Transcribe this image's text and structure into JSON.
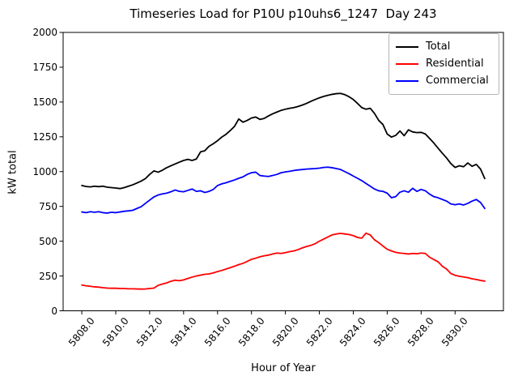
{
  "title": "Timeseries Load for P10U p10uhs6_1247  Day 243",
  "axes": {
    "xlabel": "Hour of Year",
    "ylabel": "kW total",
    "x_tick_labels": [
      "5808.0",
      "5810.0",
      "5812.0",
      "5814.0",
      "5816.0",
      "5818.0",
      "5820.0",
      "5822.0",
      "5824.0",
      "5826.0",
      "5828.0",
      "5830.0"
    ],
    "x_ticks": [
      5808.0,
      5810.0,
      5812.0,
      5814.0,
      5816.0,
      5818.0,
      5820.0,
      5822.0,
      5824.0,
      5826.0,
      5828.0,
      5830.0
    ],
    "y_tick_labels": [
      "0",
      "250",
      "500",
      "750",
      "1000",
      "1250",
      "1500",
      "1750",
      "2000"
    ],
    "y_ticks": [
      0,
      250,
      500,
      750,
      1000,
      1250,
      1500,
      1750,
      2000
    ]
  },
  "legend": {
    "position": "upper right",
    "entries": [
      "Total",
      "Residential",
      "Commercial"
    ]
  },
  "chart_data": {
    "type": "line",
    "title": "Timeseries Load for P10U p10uhs6_1247  Day 243",
    "xlabel": "Hour of Year",
    "ylabel": "kW total",
    "xlim": [
      5806.9,
      5832.85
    ],
    "ylim": [
      0,
      2000
    ],
    "grid": false,
    "legend_position": "upper right",
    "x": [
      5808.0,
      5808.25,
      5808.5,
      5808.75,
      5809.0,
      5809.25,
      5809.5,
      5809.75,
      5810.0,
      5810.25,
      5810.5,
      5810.75,
      5811.0,
      5811.25,
      5811.5,
      5811.75,
      5812.0,
      5812.25,
      5812.5,
      5812.75,
      5813.0,
      5813.25,
      5813.5,
      5813.75,
      5814.0,
      5814.25,
      5814.5,
      5814.75,
      5815.0,
      5815.25,
      5815.5,
      5815.75,
      5816.0,
      5816.25,
      5816.5,
      5816.75,
      5817.0,
      5817.25,
      5817.5,
      5817.75,
      5818.0,
      5818.25,
      5818.5,
      5818.75,
      5819.0,
      5819.25,
      5819.5,
      5819.75,
      5820.0,
      5820.25,
      5820.5,
      5820.75,
      5821.0,
      5821.25,
      5821.5,
      5821.75,
      5822.0,
      5822.25,
      5822.5,
      5822.75,
      5823.0,
      5823.25,
      5823.5,
      5823.75,
      5824.0,
      5824.25,
      5824.5,
      5824.75,
      5825.0,
      5825.25,
      5825.5,
      5825.75,
      5826.0,
      5826.25,
      5826.5,
      5826.75,
      5827.0,
      5827.25,
      5827.5,
      5827.75,
      5828.0,
      5828.25,
      5828.5,
      5828.75,
      5829.0,
      5829.25,
      5829.5,
      5829.75,
      5830.0,
      5830.25,
      5830.5,
      5830.75,
      5831.0,
      5831.25,
      5831.5,
      5831.75
    ],
    "series": [
      {
        "name": "Total",
        "color": "#000000",
        "values": [
          900,
          893,
          890,
          895,
          892,
          895,
          888,
          885,
          882,
          878,
          885,
          895,
          905,
          918,
          932,
          950,
          980,
          1005,
          996,
          1010,
          1028,
          1042,
          1055,
          1068,
          1080,
          1088,
          1080,
          1090,
          1142,
          1150,
          1182,
          1200,
          1222,
          1248,
          1268,
          1295,
          1325,
          1378,
          1355,
          1368,
          1385,
          1392,
          1375,
          1382,
          1400,
          1415,
          1428,
          1440,
          1448,
          1455,
          1460,
          1468,
          1478,
          1490,
          1505,
          1518,
          1530,
          1540,
          1548,
          1555,
          1560,
          1562,
          1553,
          1538,
          1518,
          1490,
          1460,
          1448,
          1455,
          1418,
          1368,
          1338,
          1270,
          1248,
          1260,
          1292,
          1258,
          1300,
          1285,
          1280,
          1282,
          1270,
          1238,
          1205,
          1168,
          1132,
          1098,
          1058,
          1030,
          1042,
          1035,
          1062,
          1038,
          1052,
          1018,
          950
        ]
      },
      {
        "name": "Residential",
        "color": "#ff0000",
        "values": [
          185,
          180,
          176,
          172,
          170,
          166,
          163,
          162,
          162,
          160,
          160,
          158,
          158,
          157,
          156,
          157,
          160,
          163,
          183,
          192,
          200,
          212,
          220,
          216,
          222,
          232,
          242,
          250,
          256,
          262,
          265,
          272,
          282,
          290,
          300,
          310,
          320,
          332,
          341,
          355,
          370,
          378,
          388,
          395,
          400,
          408,
          415,
          412,
          418,
          425,
          430,
          440,
          452,
          462,
          470,
          482,
          500,
          515,
          530,
          545,
          552,
          556,
          552,
          548,
          540,
          527,
          522,
          558,
          545,
          510,
          490,
          465,
          442,
          430,
          420,
          415,
          412,
          408,
          412,
          410,
          415,
          412,
          385,
          368,
          352,
          320,
          300,
          268,
          255,
          248,
          243,
          238,
          230,
          225,
          218,
          213
        ]
      },
      {
        "name": "Commercial",
        "color": "#0000ff",
        "values": [
          710,
          705,
          712,
          708,
          712,
          705,
          702,
          708,
          705,
          710,
          715,
          718,
          722,
          735,
          748,
          772,
          795,
          818,
          832,
          840,
          845,
          855,
          868,
          858,
          855,
          865,
          875,
          858,
          862,
          850,
          858,
          872,
          900,
          912,
          920,
          930,
          940,
          952,
          962,
          980,
          992,
          996,
          972,
          968,
          965,
          972,
          980,
          992,
          998,
          1002,
          1008,
          1012,
          1015,
          1018,
          1020,
          1022,
          1025,
          1030,
          1032,
          1028,
          1022,
          1015,
          1000,
          985,
          968,
          952,
          935,
          915,
          895,
          875,
          862,
          858,
          845,
          812,
          820,
          852,
          862,
          852,
          880,
          858,
          872,
          862,
          838,
          820,
          812,
          800,
          788,
          768,
          762,
          768,
          760,
          772,
          788,
          800,
          778,
          735
        ]
      }
    ]
  }
}
